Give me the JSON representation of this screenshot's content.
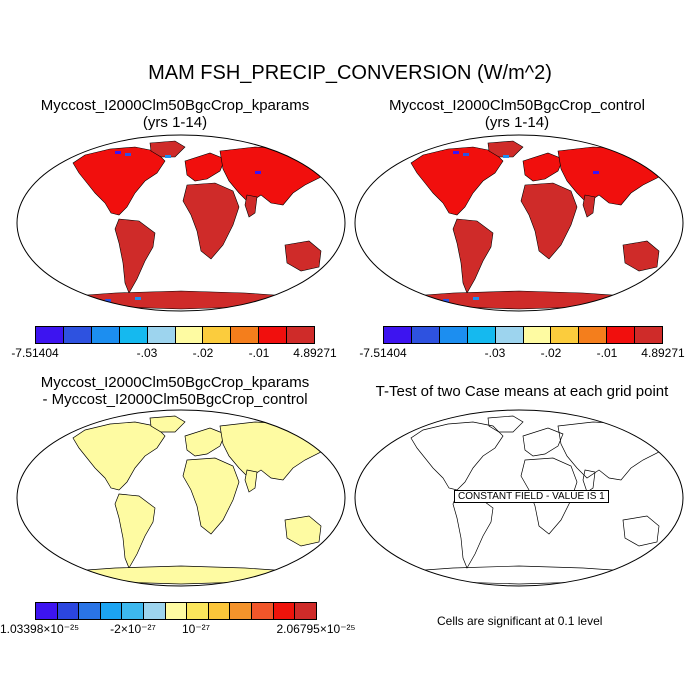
{
  "title": "MAM FSH_PRECIP_CONVERSION (W/m^2)",
  "panels": [
    {
      "title": "Myccost_I2000Clm50BgcCrop_kparams",
      "subtitle": "(yrs 1-14)"
    },
    {
      "title": "Myccost_I2000Clm50BgcCrop_control",
      "subtitle": "(yrs 1-14)"
    },
    {
      "title": "Myccost_I2000Clm50BgcCrop_kparams",
      "subtitle": "- Myccost_I2000Clm50BgcCrop_control"
    },
    {
      "title": "T-Test of two Case means at each grid point",
      "subtitle": ""
    }
  ],
  "colorbar_top": {
    "colors": [
      "#3d14f0",
      "#2e52e0",
      "#1c8ef0",
      "#15b9ef",
      "#9dd4ee",
      "#fefba2",
      "#fbcc3d",
      "#f47e1c",
      "#f10f0d",
      "#cf2b29"
    ],
    "labels": {
      "min": "-7.51404",
      "a": "-.03",
      "b": "-.02",
      "c": "-.01",
      "max": "4.89271"
    }
  },
  "colorbar_diff": {
    "colors": [
      "#3d14f0",
      "#2b46df",
      "#2a74e6",
      "#1ca4f2",
      "#3db8ee",
      "#9dd4ee",
      "#fefba2",
      "#fbe65c",
      "#fbc53a",
      "#f4932b",
      "#f1562a",
      "#ef130b",
      "#cf2b29"
    ],
    "labels": {
      "min": "1.03398×10⁻²⁵",
      "a": "-2×10⁻²⁷",
      "b": "10⁻²⁷",
      "max": "2.06795×10⁻²⁵"
    }
  },
  "constant_field": "CONSTANT FIELD - VALUE IS 1",
  "significance_note": "Cells are significant at 0.1 level",
  "land_colors": {
    "main": "#cf2b29",
    "bright": "#f10f0d",
    "diff": "#fefba2"
  }
}
